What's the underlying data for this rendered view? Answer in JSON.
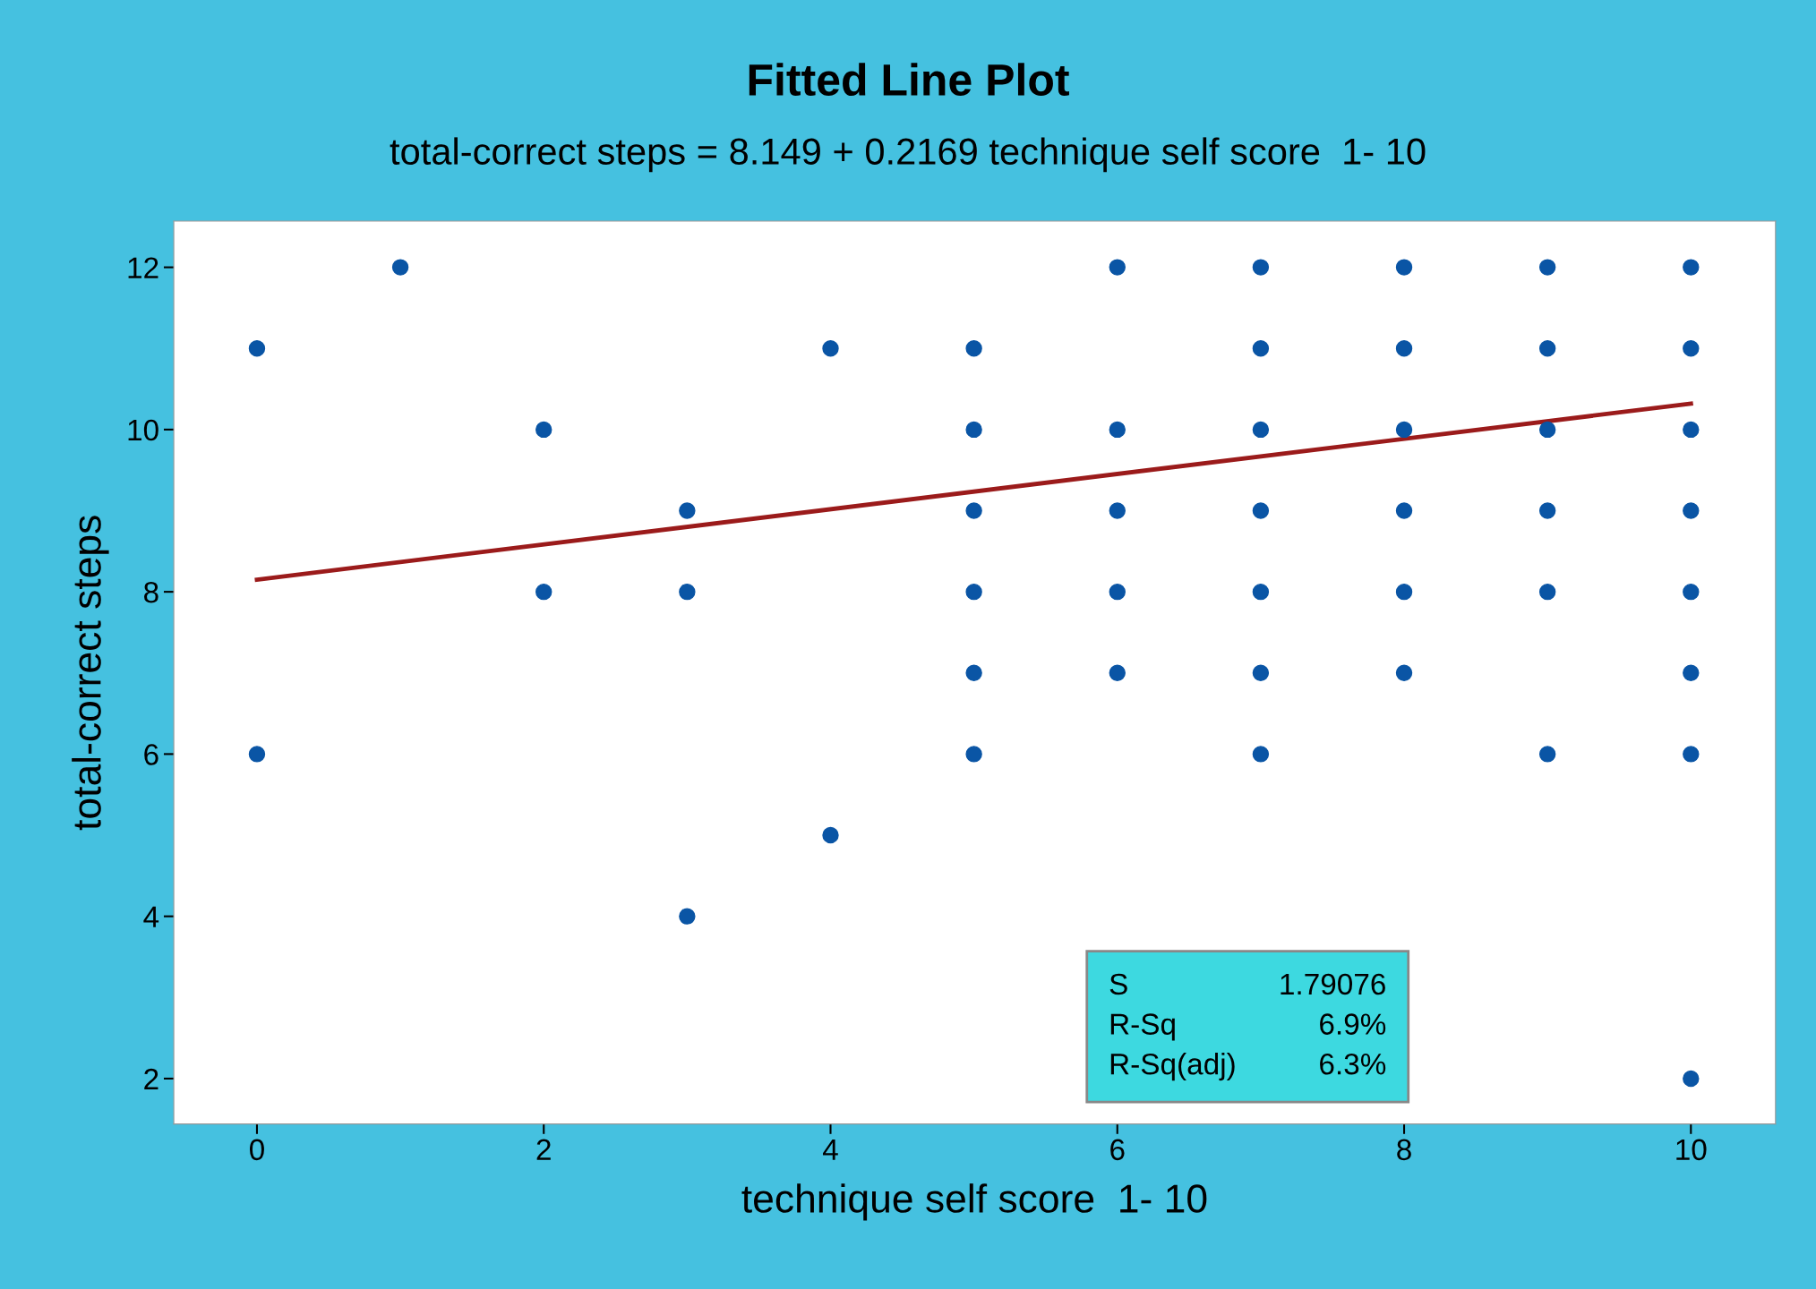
{
  "chart_data": {
    "type": "scatter",
    "title": "Fitted Line Plot",
    "subtitle": "total-correct steps = 8.149 + 0.2169 technique self score  1- 10",
    "xlabel": "technique self score  1- 10",
    "ylabel": "total-correct steps",
    "series": [
      {
        "color": "#0a55a5",
        "marker": "circle",
        "x": [
          0,
          0,
          1,
          2,
          2,
          3,
          3,
          3,
          4,
          4,
          5,
          5,
          5,
          5,
          5,
          5,
          6,
          6,
          6,
          6,
          6,
          7,
          7,
          7,
          7,
          7,
          7,
          7,
          8,
          8,
          8,
          8,
          8,
          8,
          9,
          9,
          9,
          9,
          9,
          9,
          10,
          10,
          10,
          10,
          10,
          10,
          10,
          10
        ],
        "values": [
          11,
          6,
          12,
          10,
          8,
          9,
          8,
          4,
          11,
          5,
          11,
          10,
          9,
          8,
          7,
          6,
          12,
          10,
          9,
          8,
          7,
          12,
          11,
          10,
          9,
          8,
          7,
          6,
          12,
          11,
          10,
          9,
          8,
          7,
          12,
          11,
          10,
          9,
          8,
          6,
          12,
          11,
          10,
          9,
          8,
          7,
          6,
          2
        ]
      },
      {
        "type": "line",
        "color": "#9b1b1b",
        "line_style": "solid",
        "x": [
          0,
          10
        ],
        "values": [
          8.15,
          10.32
        ]
      }
    ],
    "xlim": [
      -0.58,
      10.59
    ],
    "ylim": [
      1.44,
      12.57
    ],
    "xticks": [
      0,
      2,
      4,
      6,
      8,
      10
    ],
    "yticks": [
      2,
      4,
      6,
      8,
      10,
      12
    ],
    "grid": false,
    "legend": false,
    "annotations": [
      "S",
      "1.79076",
      "R-Sq",
      "6.9%",
      "R-Sq(adj)",
      "6.3%"
    ]
  }
}
